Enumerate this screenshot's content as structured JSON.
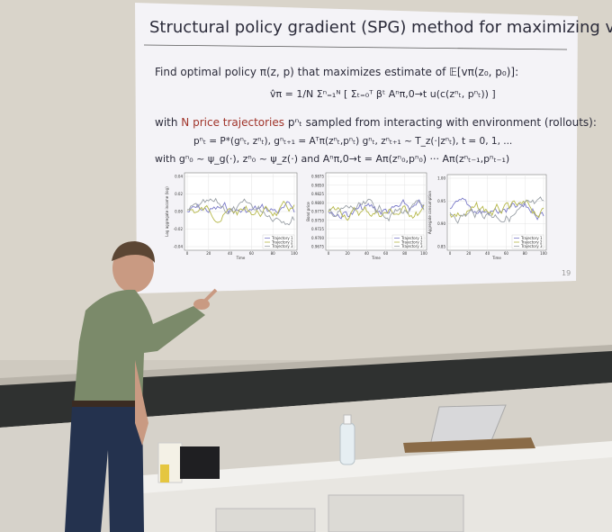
{
  "slide": {
    "title": "Structural policy gradient (SPG) method for maximizing vπ",
    "line1": "Find optimal policy π(z, p) that maximizes estimate of 𝔼[vπ(z₀, p₀)]:",
    "formula": "v̂π = 1/N Σⁿ₌₁ᴺ [ Σₜ₌₀ᵀ βᵗ Aⁿπ,0→t u(c(zⁿₜ, pⁿₜ)) ]",
    "line2_prefix": "with",
    "line2_highlight": "N price trajectories",
    "line2_rest": "pⁿₜ sampled from interacting with environment (rollouts):",
    "line3": "pⁿₜ = P*(gⁿₜ, zⁿₜ),    gⁿₜ₊₁ = Aᵀπ(zⁿₜ,pⁿₜ) gⁿₜ,    zⁿₜ₊₁ ~ T_z(·|zⁿₜ),    t = 0, 1, ...",
    "line4": "with gⁿ₀ ~ ψ_g(·), zⁿ₀ ~ ψ_z(·) and Aⁿπ,0→t = Aπ(zⁿ₀,pⁿ₀) ··· Aπ(zⁿₜ₋₁,pⁿₜ₋₁)",
    "page_number": "19",
    "plots": [
      {
        "ylabel": "Log aggregate income (log)",
        "xlabel": "Time",
        "xticks": [
          "0",
          "20",
          "40",
          "60",
          "80",
          "100"
        ],
        "yticks": [
          "0.04",
          "0.02",
          "0.00",
          "-0.02",
          "-0.04"
        ],
        "legend": [
          "Trajectory 1",
          "Trajectory 2",
          "Trajectory 3"
        ]
      },
      {
        "ylabel": "Bond price",
        "xlabel": "Time",
        "xticks": [
          "0",
          "20",
          "40",
          "60",
          "80",
          "100"
        ],
        "yticks": [
          "0.9875",
          "0.9850",
          "0.9825",
          "0.9800",
          "0.9775",
          "0.9750",
          "0.9725",
          "0.9700",
          "0.9675"
        ],
        "legend": [
          "Trajectory 1",
          "Trajectory 2",
          "Trajectory 3"
        ]
      },
      {
        "ylabel": "Aggregate consumption",
        "xlabel": "Time",
        "xticks": [
          "0",
          "20",
          "40",
          "60",
          "80",
          "100"
        ],
        "yticks": [
          "1.00",
          "0.95",
          "0.90",
          "0.85"
        ],
        "legend": [
          "Trajectory 1",
          "Trajectory 2",
          "Trajectory 3"
        ]
      }
    ]
  }
}
